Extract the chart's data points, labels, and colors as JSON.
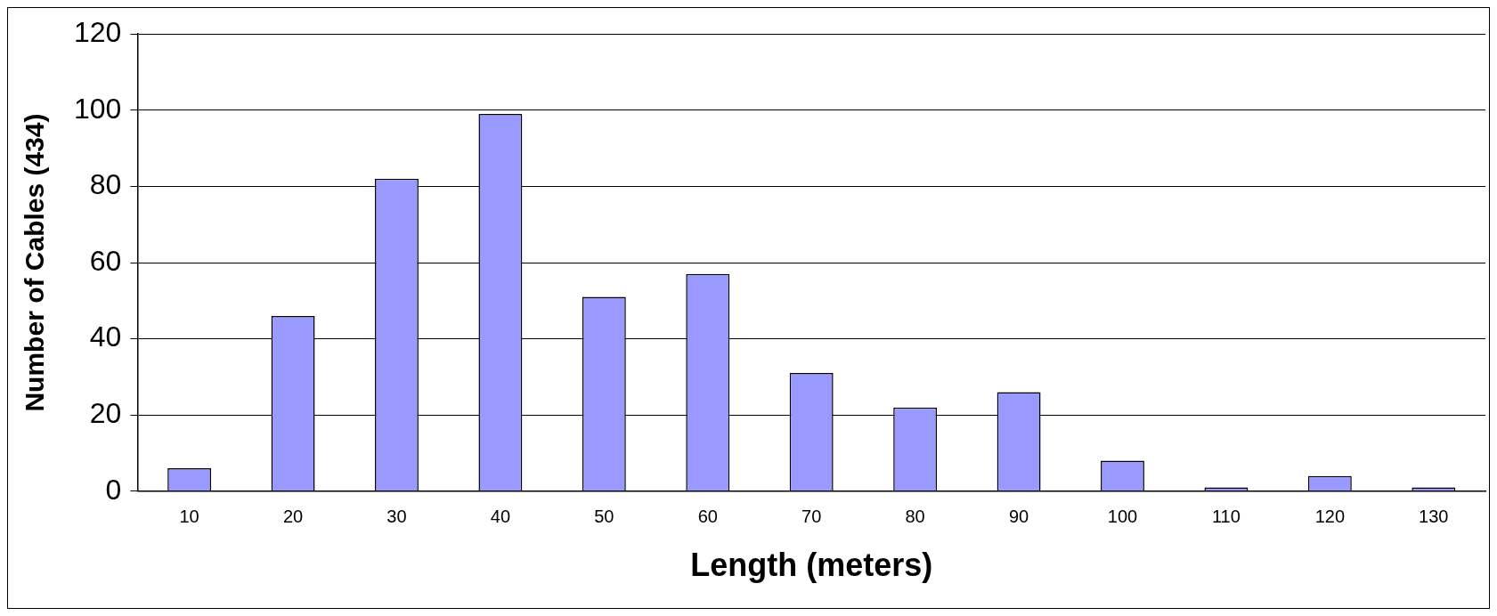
{
  "chart_data": {
    "type": "bar",
    "xlabel": "Length (meters)",
    "ylabel": "Number of Cables (434)",
    "categories": [
      "10",
      "20",
      "30",
      "40",
      "50",
      "60",
      "70",
      "80",
      "90",
      "100",
      "110",
      "120",
      "130"
    ],
    "values": [
      6,
      46,
      82,
      99,
      51,
      57,
      31,
      22,
      26,
      8,
      1,
      4,
      1
    ],
    "color": "#9999ff",
    "ylim": [
      0,
      120
    ],
    "yticks": [
      0,
      20,
      40,
      60,
      80,
      100,
      120
    ],
    "grid": "y",
    "legend": false
  }
}
